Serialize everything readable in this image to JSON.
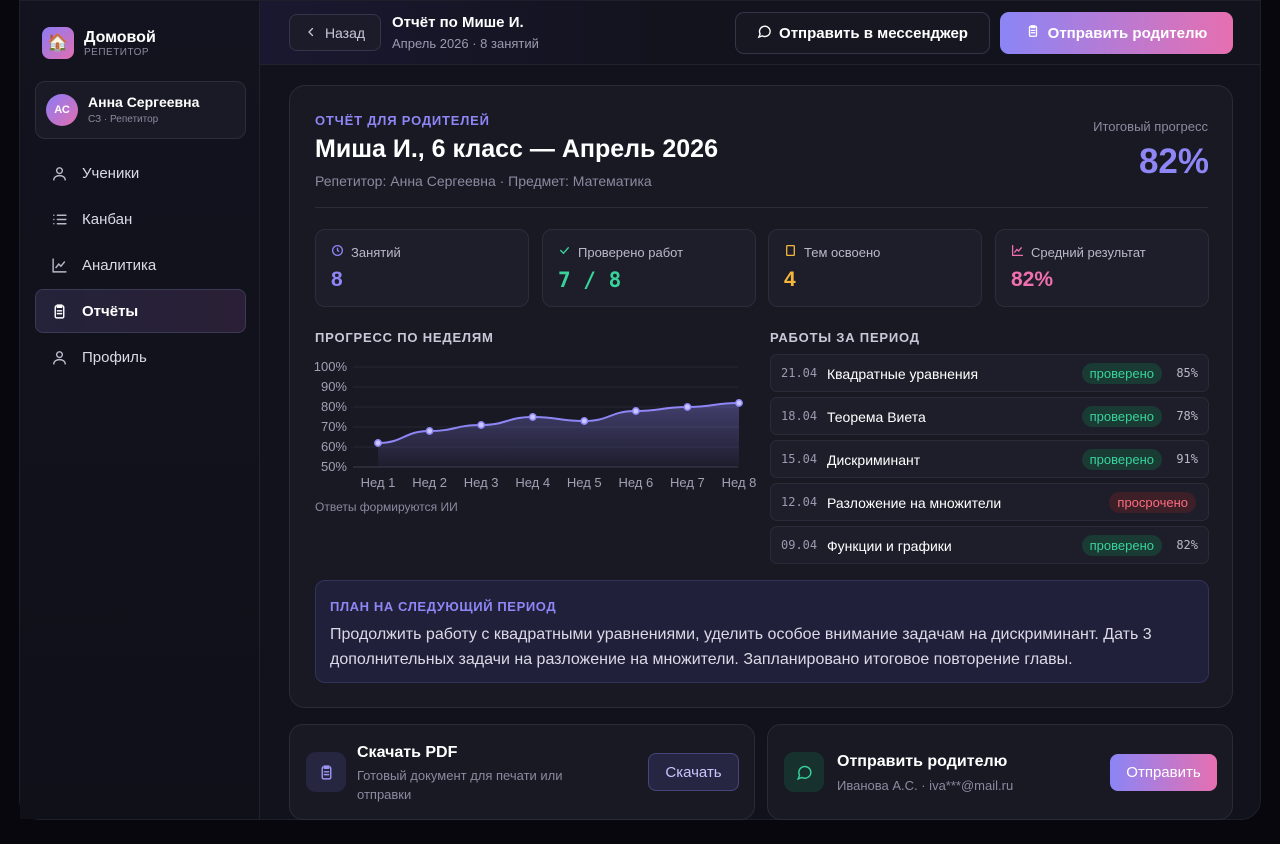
{
  "brand": {
    "name": "Домовой",
    "subtitle": "РЕПЕТИТОР",
    "logo_icon": "house-icon"
  },
  "user": {
    "initials": "АС",
    "name": "Анна Сергеевна",
    "role": "СЗ · Репетитор"
  },
  "nav": [
    {
      "label": "Ученики",
      "icon": "user-icon",
      "active": false
    },
    {
      "label": "Канбан",
      "icon": "list-icon",
      "active": false
    },
    {
      "label": "Аналитика",
      "icon": "chart-icon",
      "active": false
    },
    {
      "label": "Отчёты",
      "icon": "clipboard-icon",
      "active": true
    },
    {
      "label": "Профиль",
      "icon": "user-icon",
      "active": false
    }
  ],
  "header": {
    "back_label": "Назад",
    "title": "Отчёт по Мише И.",
    "subtitle": "Апрель 2026 · 8 занятий",
    "messenger_label": "Отправить в мессенджер",
    "parent_label": "Отправить родителю"
  },
  "report": {
    "eyebrow": "ОТЧЁТ ДЛЯ РОДИТЕЛЕЙ",
    "title": "Миша И., 6 класс — Апрель 2026",
    "subtitle": "Репетитор: Анна Сергеевна · Предмет: Математика",
    "progress_label": "Итоговый прогресс",
    "progress_value": "82%",
    "stats": [
      {
        "label": "Занятий",
        "value": "8",
        "icon": "clock-icon",
        "color": "#8e86f5"
      },
      {
        "label": "Проверено работ",
        "value": "7 / 8",
        "icon": "check-icon",
        "color": "#38d39a"
      },
      {
        "label": "Тем освоено",
        "value": "4",
        "icon": "book-icon",
        "color": "#f5b73b"
      },
      {
        "label": "Средний результат",
        "value": "82%",
        "icon": "chart-icon",
        "color": "#f06fae"
      }
    ],
    "chart_heading": "ПРОГРЕСС ПО НЕДЕЛЯМ",
    "chart_note": "Ответы формируются ИИ",
    "works_heading": "РАБОТЫ ЗА ПЕРИОД",
    "works": [
      {
        "date": "21.04",
        "name": "Квадратные уравнения",
        "status": "проверено",
        "state": "ok",
        "score": "85%"
      },
      {
        "date": "18.04",
        "name": "Теорема Виета",
        "status": "проверено",
        "state": "ok",
        "score": "78%"
      },
      {
        "date": "15.04",
        "name": "Дискриминант",
        "status": "проверено",
        "state": "ok",
        "score": "91%"
      },
      {
        "date": "12.04",
        "name": "Разложение на множители",
        "status": "просрочено",
        "state": "late",
        "score": ""
      },
      {
        "date": "09.04",
        "name": "Функции и графики",
        "status": "проверено",
        "state": "ok",
        "score": "82%"
      }
    ],
    "plan_heading": "ПЛАН НА СЛЕДУЮЩИЙ ПЕРИОД",
    "plan_text": "Продолжить работу с квадратными уравнениями, уделить особое внимание задачам на дискриминант. Дать 3 дополнительных задачи на разложение на множители. Запланировано итоговое повторение главы."
  },
  "pdf_card": {
    "title": "Скачать PDF",
    "subtitle": "Готовый документ для печати или отправки",
    "button": "Скачать",
    "icon": "clipboard-icon"
  },
  "send_card": {
    "title": "Отправить родителю",
    "subtitle": "Иванова А.С. · iva***@mail.ru",
    "button": "Отправить",
    "icon": "message-icon"
  },
  "chart_data": {
    "type": "area",
    "categories": [
      "Нед 1",
      "Нед 2",
      "Нед 3",
      "Нед 4",
      "Нед 5",
      "Нед 6",
      "Нед 7",
      "Нед 8"
    ],
    "values": [
      62,
      68,
      71,
      75,
      73,
      78,
      80,
      82
    ],
    "yticks": [
      "50%",
      "60%",
      "70%",
      "80%",
      "90%",
      "100%"
    ],
    "ylim": [
      50,
      100
    ],
    "grid": true,
    "line_color": "#8e86f5"
  }
}
